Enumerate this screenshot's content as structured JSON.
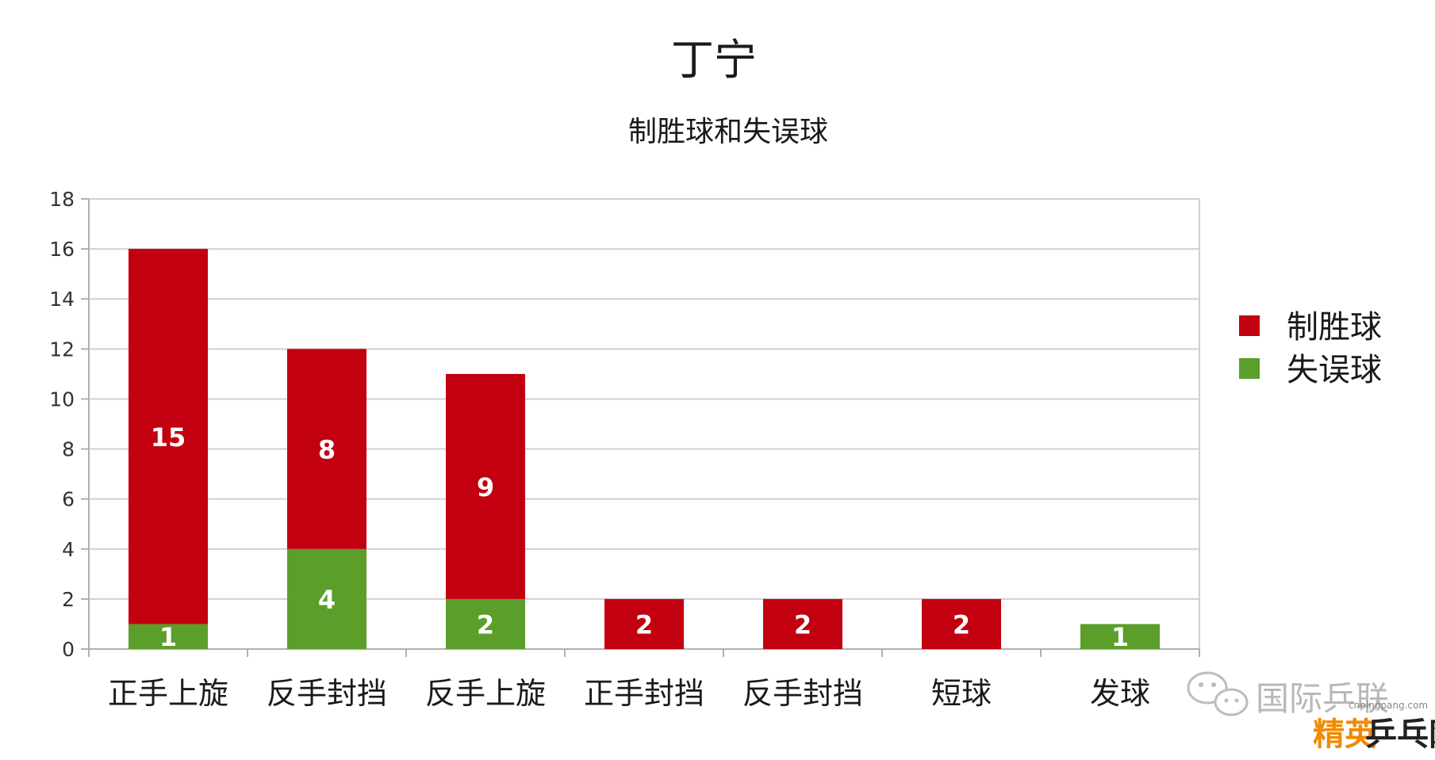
{
  "chart_data": {
    "type": "bar",
    "stacked": true,
    "title": "丁宁",
    "subtitle": "制胜球和失误球",
    "categories": [
      "正手上旋",
      "反手封挡",
      "反手上旋",
      "正手封挡",
      "反手封挡",
      "短球",
      "发球"
    ],
    "series": [
      {
        "name": "失误球",
        "color": "#5b9e2a",
        "values": [
          1,
          4,
          2,
          0,
          0,
          0,
          1
        ]
      },
      {
        "name": "制胜球",
        "color": "#c20010",
        "values": [
          15,
          8,
          9,
          2,
          2,
          2,
          0
        ]
      }
    ],
    "ylim": [
      0,
      18
    ],
    "yticks": [
      0,
      2,
      4,
      6,
      8,
      10,
      12,
      14,
      16,
      18
    ],
    "legend": {
      "position": "right",
      "entries": [
        {
          "label": "制胜球",
          "color": "#c20010"
        },
        {
          "label": "失误球",
          "color": "#5b9e2a"
        }
      ]
    },
    "grid": true
  },
  "watermark": {
    "account": "国际乒联",
    "url": "cnpingpang.com",
    "logo_left": "精英",
    "logo_right": "乒乓网"
  }
}
